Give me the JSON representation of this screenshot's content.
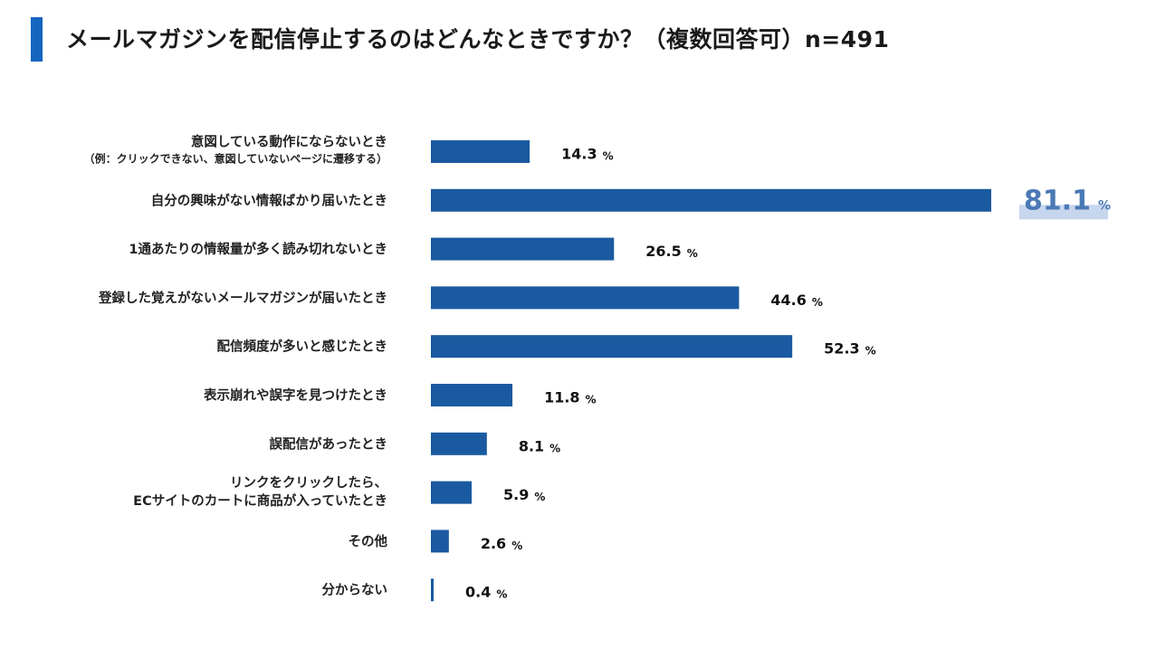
{
  "title": "メールマガジンを配信停止するのはどんなときですか？（複数回答可）n=491",
  "colors": {
    "accent": "#1565c0",
    "bar": "#1a5aa0",
    "highlight_text": "#4a79b5",
    "highlight_bg": "#c6d6ee"
  },
  "chart_data": {
    "type": "bar",
    "orientation": "horizontal",
    "title": "メールマガジンを配信停止するのはどんなときですか？（複数回答可）n=491",
    "unit": "%",
    "xlim": [
      0,
      100
    ],
    "grid": false,
    "highlight_index": 1,
    "categories": [
      [
        "意図している動作にならないとき",
        "（例：クリックできない、意図していないページに遷移する）"
      ],
      [
        "自分の興味がない情報ばかり届いたとき"
      ],
      [
        "1通あたりの情報量が多く読み切れないとき"
      ],
      [
        "登録した覚えがないメールマガジンが届いたとき"
      ],
      [
        "配信頻度が多いと感じたとき"
      ],
      [
        "表示崩れや誤字を見つけたとき"
      ],
      [
        "誤配信があったとき"
      ],
      [
        "リンクをクリックしたら、",
        "ECサイトのカートに商品が入っていたとき"
      ],
      [
        "その他"
      ],
      [
        "分からない"
      ]
    ],
    "values": [
      14.3,
      81.1,
      26.5,
      44.6,
      52.3,
      11.8,
      8.1,
      5.9,
      2.6,
      0.4
    ],
    "value_labels": [
      "14.3",
      "81.1",
      "26.5",
      "44.6",
      "52.3",
      "11.8",
      "8.1",
      "5.9",
      "2.6",
      "0.4"
    ]
  }
}
